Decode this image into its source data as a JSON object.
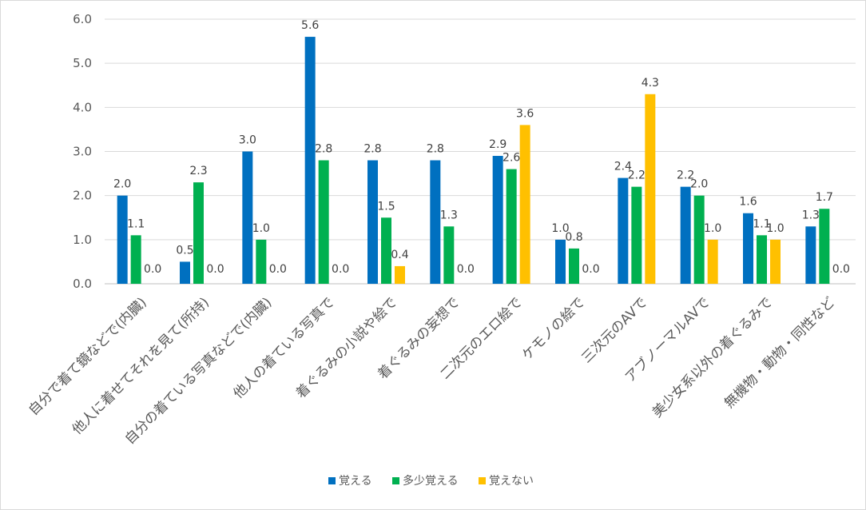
{
  "chart_data": {
    "type": "bar",
    "categories": [
      "自分で着て鏡などで(内臓)",
      "他人に着せてそれを見て(所持)",
      "自分の着ている写真などで(内臓)",
      "他人の着ている写真で",
      "着ぐるみの小説や絵で",
      "着ぐるみの妄想で",
      "二次元のエロ絵で",
      "ケモノの絵で",
      "三次元のAVで",
      "アブノーマルAVで",
      "美少女系以外の着ぐるみで",
      "無機物・動物・同性など"
    ],
    "series": [
      {
        "name": "覚える",
        "color": "#0070c0",
        "values": [
          2.0,
          0.5,
          3.0,
          5.6,
          2.8,
          2.8,
          2.9,
          1.0,
          2.4,
          2.2,
          1.6,
          1.3
        ]
      },
      {
        "name": "多少覚える",
        "color": "#00b050",
        "values": [
          1.1,
          2.3,
          1.0,
          2.8,
          1.5,
          1.3,
          2.6,
          0.8,
          2.2,
          2.0,
          1.1,
          1.7
        ]
      },
      {
        "name": "覚えない",
        "color": "#ffc000",
        "values": [
          0.0,
          0.0,
          0.0,
          0.0,
          0.4,
          0.0,
          3.6,
          0.0,
          4.3,
          1.0,
          1.0,
          0.0
        ]
      }
    ],
    "data_labels": [
      [
        "2.0",
        "1.1",
        "0.0"
      ],
      [
        "0.5",
        "2.3",
        "0.0"
      ],
      [
        "3.0",
        "1.0",
        "0.0"
      ],
      [
        "5.6",
        "2.8",
        "0.0"
      ],
      [
        "2.8",
        "1.5",
        "0.4"
      ],
      [
        "2.8",
        "1.3",
        "0.0"
      ],
      [
        "2.9",
        "2.6",
        "3.6"
      ],
      [
        "1.0",
        "0.8",
        "0.0"
      ],
      [
        "2.4",
        "2.2",
        "4.3"
      ],
      [
        "2.2",
        "2.0",
        "1.0"
      ],
      [
        "1.6",
        "1.1",
        "1.0"
      ],
      [
        "1.3",
        "1.7",
        "0.0"
      ]
    ],
    "y_ticks": [
      "0.0",
      "1.0",
      "2.0",
      "3.0",
      "4.0",
      "5.0",
      "6.0"
    ],
    "ylim": [
      0,
      6
    ],
    "grid": true,
    "legend_position": "bottom",
    "gridline_color": "#d9d9d9",
    "axis_color": "#bfbfbf"
  }
}
